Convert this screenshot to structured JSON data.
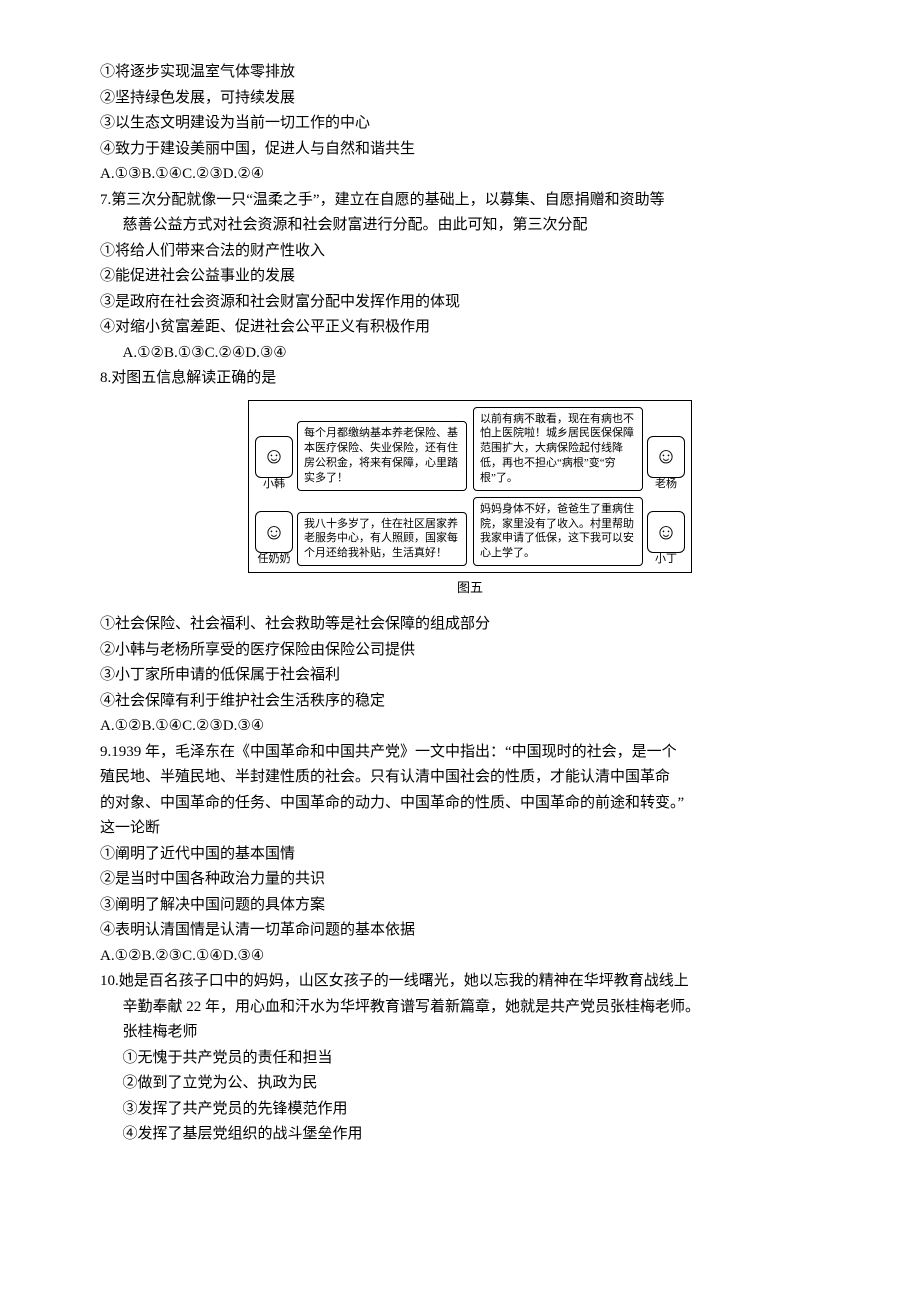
{
  "colors": {
    "text": "#000000",
    "background": "#ffffff",
    "border": "#000000"
  },
  "fonts": {
    "body_family": "SimSun",
    "body_size_pt": 11,
    "figure_text_pt": 8,
    "caption_pt": 10
  },
  "q6_tail": {
    "opt1": "①将逐步实现温室气体零排放",
    "opt2": "②坚持绿色发展，可持续发展",
    "opt3": "③以生态文明建设为当前一切工作的中心",
    "opt4": "④致力于建设美丽中国，促进人与自然和谐共生",
    "choices": "A.①③B.①④C.②③D.②④"
  },
  "q7": {
    "stem1": "7.第三次分配就像一只“温柔之手”，建立在自愿的基础上，以募集、自愿捐赠和资助等",
    "stem2": "慈善公益方式对社会资源和社会财富进行分配。由此可知，第三次分配",
    "opt1": "①将给人们带来合法的财产性收入",
    "opt2": "②能促进社会公益事业的发展",
    "opt3": "③是政府在社会资源和社会财富分配中发挥作用的体现",
    "opt4": "④对缩小贫富差距、促进社会公平正义有积极作用",
    "choices": "A.①②B.①③C.②④D.③④"
  },
  "q8": {
    "stem": "8.对图五信息解读正确的是",
    "figure": {
      "caption": "图五",
      "cells": [
        {
          "name": "小韩",
          "avatar_glyph": "☺",
          "text": "每个月都缴纳基本养老保险、基本医疗保险、失业保险，还有住房公积金，将来有保障，心里踏实多了！"
        },
        {
          "name": "老杨",
          "avatar_glyph": "☺",
          "text": "以前有病不敢看，现在有病也不怕上医院啦！城乡居民医保保障范围扩大，大病保险起付线降低，再也不担心“病根”变“穷根”了。"
        },
        {
          "name": "任奶奶",
          "avatar_glyph": "☺",
          "text": "我八十多岁了，住在社区居家养老服务中心，有人照顾，国家每个月还给我补贴，生活真好！"
        },
        {
          "name": "小丁",
          "avatar_glyph": "☺",
          "text": "妈妈身体不好，爸爸生了重病住院，家里没有了收入。村里帮助我家申请了低保，这下我可以安心上学了。"
        }
      ]
    },
    "opt1": "①社会保险、社会福利、社会救助等是社会保障的组成部分",
    "opt2": "②小韩与老杨所享受的医疗保险由保险公司提供",
    "opt3": "③小丁家所申请的低保属于社会福利",
    "opt4": "④社会保障有利于维护社会生活秩序的稳定",
    "choices": "A.①②B.①④C.②③D.③④"
  },
  "q9": {
    "stem1": "9.1939 年，毛泽东在《中国革命和中国共产党》一文中指出：“中国现时的社会，是一个",
    "stem2": "殖民地、半殖民地、半封建性质的社会。只有认清中国社会的性质，才能认清中国革命",
    "stem3": "的对象、中国革命的任务、中国革命的动力、中国革命的性质、中国革命的前途和转变。”",
    "stem4": "这一论断",
    "opt1": "①阐明了近代中国的基本国情",
    "opt2": "②是当时中国各种政治力量的共识",
    "opt3": "③阐明了解决中国问题的具体方案",
    "opt4": "④表明认清国情是认清一切革命问题的基本依据",
    "choices": "A.①②B.②③C.①④D.③④"
  },
  "q10": {
    "stem1": "10.她是百名孩子口中的妈妈，山区女孩子的一线曙光，她以忘我的精神在华坪教育战线上",
    "stem2": "辛勤奉献 22 年，用心血和汗水为华坪教育谱写着新篇章，她就是共产党员张桂梅老师。",
    "stem3": "张桂梅老师",
    "opt1": "①无愧于共产党员的责任和担当",
    "opt2": "②做到了立党为公、执政为民",
    "opt3": "③发挥了共产党员的先锋模范作用",
    "opt4": "④发挥了基层党组织的战斗堡垒作用"
  }
}
